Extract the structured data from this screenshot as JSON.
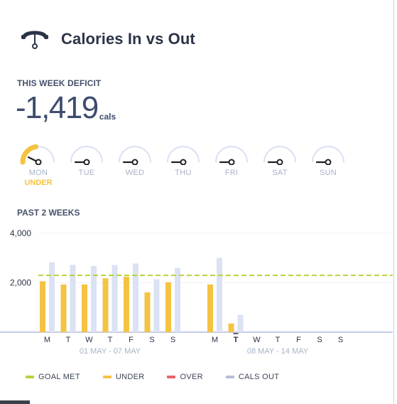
{
  "header": {
    "title": "Calories In vs Out",
    "icon": "scale-meter-icon"
  },
  "deficit": {
    "label": "THIS WEEK DEFICIT",
    "value": "-1,419",
    "unit": "cals"
  },
  "week_days": [
    {
      "name": "MON",
      "status": "UNDER",
      "progress": 0.45
    },
    {
      "name": "TUE",
      "status": "",
      "progress": 0
    },
    {
      "name": "WED",
      "status": "",
      "progress": 0
    },
    {
      "name": "THU",
      "status": "",
      "progress": 0
    },
    {
      "name": "FRI",
      "status": "",
      "progress": 0
    },
    {
      "name": "SAT",
      "status": "",
      "progress": 0
    },
    {
      "name": "SUN",
      "status": "",
      "progress": 0
    }
  ],
  "past_label": "PAST 2 WEEKS",
  "chart_data": {
    "type": "bar",
    "ylim": [
      0,
      4000
    ],
    "yticks": [
      {
        "value": 2000,
        "label": "2,000"
      },
      {
        "value": 4000,
        "label": "4,000"
      }
    ],
    "goal": 2300,
    "grid": true,
    "weeks": [
      {
        "label": "01 MAY - 07 MAY",
        "days": [
          "M",
          "T",
          "W",
          "T",
          "F",
          "S",
          "S"
        ],
        "cals_in": [
          2060,
          1930,
          1930,
          2180,
          2240,
          1610,
          2020
        ],
        "cals_out": [
          2830,
          2720,
          2680,
          2720,
          2780,
          2140,
          2600
        ]
      },
      {
        "label": "08 MAY - 14 MAY",
        "days": [
          "M",
          "T",
          "W",
          "T",
          "F",
          "S",
          "S"
        ],
        "cals_in": [
          1930,
          350,
          null,
          null,
          null,
          null,
          null
        ],
        "cals_out": [
          3010,
          700,
          null,
          null,
          null,
          null,
          null
        ],
        "current_day": 1
      }
    ],
    "series": [
      {
        "name": "GOAL MET",
        "color": "#b5d33b"
      },
      {
        "name": "UNDER",
        "color": "#f5c343"
      },
      {
        "name": "OVER",
        "color": "#e8636c"
      },
      {
        "name": "CALS OUT",
        "color": "#dbe2f4"
      }
    ]
  },
  "legend": [
    {
      "label": "GOAL MET",
      "color": "#b5d33b"
    },
    {
      "label": "UNDER",
      "color": "#f5c343"
    },
    {
      "label": "OVER",
      "color": "#e8636c"
    },
    {
      "label": "CALS OUT",
      "color": "#b3bfd6"
    }
  ],
  "colors": {
    "text": "#2b3447",
    "gauge_track": "#dbe0f3",
    "needle": "#1f1f27",
    "under": "#f5c343",
    "day_label": "#a7b2c7",
    "week_label": "#a7b2c7",
    "baseline": "#c5cbe8"
  }
}
